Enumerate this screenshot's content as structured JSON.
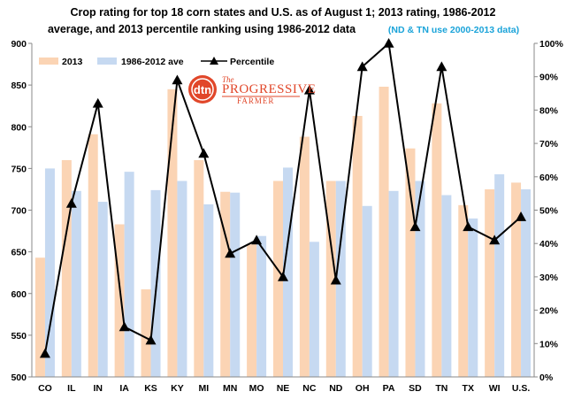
{
  "chart_data": {
    "type": "bar",
    "title_line1": "Crop rating for top 18 corn states and U.S. as of August 1; 2013 rating, 1986-2012",
    "title_line2": "average, and 2013  percentile ranking  using 1986-2012  data",
    "title_note": "(ND & TN use 2000-2013 data)",
    "categories": [
      "CO",
      "IL",
      "IN",
      "IA",
      "KS",
      "KY",
      "MI",
      "MN",
      "MO",
      "NE",
      "NC",
      "ND",
      "OH",
      "PA",
      "SD",
      "TN",
      "TX",
      "WI",
      "U.S."
    ],
    "series": [
      {
        "name": "2013",
        "type": "bar",
        "axis": "left",
        "color": "#fbd4b4",
        "values": [
          643,
          760,
          791,
          683,
          605,
          845,
          760,
          722,
          659,
          735,
          788,
          735,
          813,
          848,
          774,
          828,
          706,
          725,
          733
        ]
      },
      {
        "name": "1986-2012 ave",
        "type": "bar",
        "axis": "left",
        "color": "#c6d9f1",
        "values": [
          750,
          723,
          710,
          746,
          724,
          735,
          707,
          721,
          669,
          751,
          662,
          735,
          705,
          723,
          735,
          718,
          690,
          743,
          725
        ]
      },
      {
        "name": "Percentile",
        "type": "line",
        "axis": "right",
        "color": "#000000",
        "marker": "triangle",
        "values": [
          7,
          52,
          82,
          15,
          11,
          89,
          67,
          37,
          41,
          30,
          86,
          29,
          93,
          100,
          45,
          93,
          45,
          41,
          48
        ]
      }
    ],
    "ylim": [
      500,
      900
    ],
    "yticks": [
      500,
      550,
      600,
      650,
      700,
      750,
      800,
      850,
      900
    ],
    "y2lim": [
      0,
      100
    ],
    "y2ticks": [
      "0%",
      "10%",
      "20%",
      "30%",
      "40%",
      "50%",
      "60%",
      "70%",
      "80%",
      "90%",
      "100%"
    ],
    "legend_position": "top-left",
    "grid": false
  },
  "logo": {
    "badge": "dtn",
    "brand_top": "The",
    "brand_main": "PROGRESSIVE",
    "brand_sub": "FARMER",
    "colors": {
      "red": "#e1472a"
    }
  }
}
